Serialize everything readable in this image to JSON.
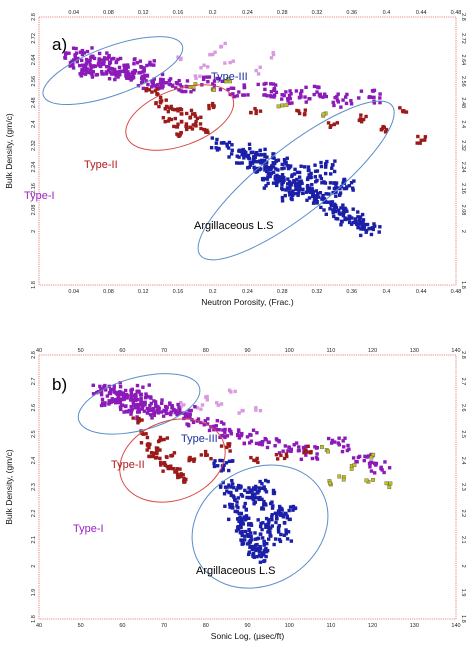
{
  "chart_data": [
    {
      "type": "scatter",
      "panel_label": "a)",
      "xlabel": "Neutron Porosity, (Frac.)",
      "ylabel": "Bulk Density, (gm/c)",
      "xlim": [
        0.0,
        0.48
      ],
      "ylim": [
        2.8,
        1.8
      ],
      "y_inverted": true,
      "x_ticks": [
        "0.04",
        "0.08",
        "0.12",
        "0.16",
        "0.2",
        "0.24",
        "0.28",
        "0.32",
        "0.36",
        "0.4",
        "0.44",
        "0.48"
      ],
      "y_ticks": [
        "1.8",
        "2",
        "2.08",
        "2.16",
        "2.24",
        "2.32",
        "2.4",
        "2.48",
        "2.56",
        "2.64",
        "2.72",
        "2.8"
      ],
      "grid": false,
      "regions": [
        {
          "name": "Type-I",
          "color": "#9b1fc4",
          "ellipse": {
            "cx": 0.085,
            "cy": 2.6,
            "rx": 0.085,
            "ry": 0.09,
            "rotate": -20
          }
        },
        {
          "name": "Type-II",
          "color": "#b01c1c",
          "ellipse": {
            "cx": 0.162,
            "cy": 2.425,
            "rx": 0.065,
            "ry": 0.105,
            "rotate": -20
          }
        },
        {
          "name": "Type-III",
          "color": "#1a2fa0",
          "ellipse": {
            "cx": 0.296,
            "cy": 2.19,
            "rx": 0.14,
            "ry": 0.125,
            "rotate": -38
          }
        }
      ],
      "annotation": "Argillaceous L.S",
      "series": [
        {
          "name": "Type-I",
          "color": "#8b1ab8",
          "points": [
            [
              0.04,
              2.64
            ],
            [
              0.05,
              2.62
            ],
            [
              0.06,
              2.61
            ],
            [
              0.07,
              2.63
            ],
            [
              0.08,
              2.6
            ],
            [
              0.09,
              2.59
            ],
            [
              0.1,
              2.58
            ],
            [
              0.11,
              2.6
            ],
            [
              0.12,
              2.57
            ],
            [
              0.13,
              2.56
            ],
            [
              0.06,
              2.59
            ],
            [
              0.08,
              2.65
            ],
            [
              0.1,
              2.62
            ],
            [
              0.05,
              2.66
            ],
            [
              0.12,
              2.61
            ],
            [
              0.15,
              2.55
            ],
            [
              0.17,
              2.54
            ],
            [
              0.2,
              2.55
            ],
            [
              0.23,
              2.52
            ],
            [
              0.26,
              2.53
            ],
            [
              0.28,
              2.51
            ],
            [
              0.3,
              2.5
            ],
            [
              0.32,
              2.52
            ],
            [
              0.35,
              2.49
            ],
            [
              0.38,
              2.5
            ]
          ]
        },
        {
          "name": "Type-II",
          "color": "#9b1b1b",
          "points": [
            [
              0.13,
              2.52
            ],
            [
              0.14,
              2.48
            ],
            [
              0.15,
              2.46
            ],
            [
              0.16,
              2.45
            ],
            [
              0.17,
              2.44
            ],
            [
              0.15,
              2.42
            ],
            [
              0.16,
              2.4
            ],
            [
              0.17,
              2.39
            ],
            [
              0.18,
              2.4
            ],
            [
              0.19,
              2.38
            ],
            [
              0.16,
              2.36
            ],
            [
              0.18,
              2.43
            ],
            [
              0.14,
              2.5
            ],
            [
              0.2,
              2.47
            ],
            [
              0.25,
              2.45
            ],
            [
              0.3,
              2.44
            ],
            [
              0.34,
              2.4
            ],
            [
              0.37,
              2.42
            ],
            [
              0.4,
              2.38
            ],
            [
              0.44,
              2.34
            ],
            [
              0.42,
              2.45
            ]
          ]
        },
        {
          "name": "Type-III",
          "color": "#1b1fa8",
          "points": [
            [
              0.21,
              2.33
            ],
            [
              0.23,
              2.3
            ],
            [
              0.24,
              2.28
            ],
            [
              0.25,
              2.26
            ],
            [
              0.26,
              2.24
            ],
            [
              0.27,
              2.22
            ],
            [
              0.28,
              2.2
            ],
            [
              0.29,
              2.18
            ],
            [
              0.3,
              2.17
            ],
            [
              0.31,
              2.15
            ],
            [
              0.32,
              2.13
            ],
            [
              0.33,
              2.11
            ],
            [
              0.34,
              2.09
            ],
            [
              0.35,
              2.07
            ],
            [
              0.36,
              2.05
            ],
            [
              0.37,
              2.03
            ],
            [
              0.38,
              2.01
            ],
            [
              0.26,
              2.28
            ],
            [
              0.28,
              2.25
            ],
            [
              0.3,
              2.22
            ],
            [
              0.32,
              2.19
            ],
            [
              0.34,
              2.16
            ],
            [
              0.29,
              2.14
            ],
            [
              0.27,
              2.18
            ],
            [
              0.33,
              2.24
            ],
            [
              0.35,
              2.18
            ]
          ]
        },
        {
          "name": "Argillaceous L.S",
          "color": "#d99be0",
          "points": [
            [
              0.16,
              2.65
            ],
            [
              0.19,
              2.62
            ],
            [
              0.2,
              2.66
            ],
            [
              0.22,
              2.63
            ],
            [
              0.25,
              2.6
            ],
            [
              0.27,
              2.66
            ],
            [
              0.18,
              2.58
            ],
            [
              0.21,
              2.69
            ]
          ]
        },
        {
          "name": "Yellow",
          "color": "#c2c21a",
          "points": [
            [
              0.18,
              2.55
            ],
            [
              0.2,
              2.53
            ],
            [
              0.22,
              2.56
            ],
            [
              0.28,
              2.47
            ],
            [
              0.33,
              2.44
            ]
          ]
        }
      ]
    },
    {
      "type": "scatter",
      "panel_label": "b)",
      "xlabel": "Sonic Log, (µsec/ft)",
      "ylabel": "Bulk Density, (gm/c)",
      "xlim": [
        40,
        140
      ],
      "ylim": [
        2.8,
        1.8
      ],
      "y_inverted": true,
      "x_ticks": [
        "40",
        "50",
        "60",
        "70",
        "80",
        "90",
        "100",
        "110",
        "120",
        "130",
        "140"
      ],
      "y_ticks": [
        "1.8",
        "1.9",
        "2",
        "2.1",
        "2.2",
        "2.3",
        "2.4",
        "2.5",
        "2.6",
        "2.7",
        "2.8"
      ],
      "grid": false,
      "regions": [
        {
          "name": "Type-I",
          "color": "#9b1fc4",
          "ellipse": {
            "cx": 64,
            "cy": 2.615,
            "rx": 15,
            "ry": 0.1,
            "rotate": -15
          }
        },
        {
          "name": "Type-II",
          "color": "#b01c1c",
          "ellipse": {
            "cx": 72,
            "cy": 2.4,
            "rx": 13,
            "ry": 0.15,
            "rotate": -20
          }
        },
        {
          "name": "Type-III",
          "color": "#1a2fa0",
          "ellipse": {
            "cx": 93,
            "cy": 2.15,
            "rx": 17,
            "ry": 0.22,
            "rotate": -30
          }
        }
      ],
      "annotation": "Argillaceous L.S",
      "series": [
        {
          "name": "Type-I",
          "color": "#8b1ab8",
          "points": [
            [
              55,
              2.66
            ],
            [
              57,
              2.62
            ],
            [
              59,
              2.64
            ],
            [
              60,
              2.61
            ],
            [
              62,
              2.63
            ],
            [
              63,
              2.6
            ],
            [
              65,
              2.62
            ],
            [
              66,
              2.58
            ],
            [
              68,
              2.61
            ],
            [
              70,
              2.59
            ],
            [
              58,
              2.67
            ],
            [
              61,
              2.65
            ],
            [
              64,
              2.66
            ],
            [
              72,
              2.6
            ],
            [
              75,
              2.58
            ],
            [
              78,
              2.55
            ],
            [
              82,
              2.53
            ],
            [
              86,
              2.51
            ],
            [
              90,
              2.49
            ],
            [
              95,
              2.47
            ],
            [
              100,
              2.45
            ],
            [
              105,
              2.43
            ],
            [
              112,
              2.46
            ],
            [
              118,
              2.4
            ],
            [
              122,
              2.37
            ]
          ]
        },
        {
          "name": "Type-II",
          "color": "#9b1b1b",
          "points": [
            [
              64,
              2.55
            ],
            [
              65,
              2.5
            ],
            [
              66,
              2.46
            ],
            [
              67,
              2.43
            ],
            [
              68,
              2.41
            ],
            [
              69,
              2.44
            ],
            [
              70,
              2.39
            ],
            [
              71,
              2.37
            ],
            [
              72,
              2.42
            ],
            [
              73,
              2.36
            ],
            [
              74,
              2.34
            ],
            [
              75,
              2.32
            ],
            [
              70,
              2.48
            ],
            [
              76,
              2.4
            ],
            [
              80,
              2.42
            ],
            [
              85,
              2.45
            ],
            [
              92,
              2.4
            ],
            [
              98,
              2.42
            ],
            [
              104,
              2.44
            ]
          ]
        },
        {
          "name": "Type-III",
          "color": "#1b1fa8",
          "points": [
            [
              84,
              2.38
            ],
            [
              86,
              2.3
            ],
            [
              87,
              2.25
            ],
            [
              88,
              2.2
            ],
            [
              89,
              2.16
            ],
            [
              90,
              2.12
            ],
            [
              91,
              2.1
            ],
            [
              92,
              2.06
            ],
            [
              93,
              2.04
            ],
            [
              94,
              2.08
            ],
            [
              95,
              2.15
            ],
            [
              96,
              2.22
            ],
            [
              97,
              2.18
            ],
            [
              98,
              2.12
            ],
            [
              99,
              2.2
            ],
            [
              93,
              2.26
            ],
            [
              90,
              2.28
            ],
            [
              94,
              2.3
            ]
          ]
        },
        {
          "name": "Argillaceous L.S",
          "color": "#d99be0",
          "points": [
            [
              74,
              2.62
            ],
            [
              78,
              2.6
            ],
            [
              80,
              2.64
            ],
            [
              83,
              2.61
            ],
            [
              86,
              2.66
            ],
            [
              88,
              2.58
            ],
            [
              92,
              2.6
            ]
          ]
        },
        {
          "name": "Yellow",
          "color": "#c2c21a",
          "points": [
            [
              110,
              2.31
            ],
            [
              112,
              2.34
            ],
            [
              115,
              2.38
            ],
            [
              119,
              2.32
            ],
            [
              120,
              2.42
            ],
            [
              124,
              2.3
            ],
            [
              109,
              2.44
            ]
          ]
        }
      ]
    }
  ]
}
